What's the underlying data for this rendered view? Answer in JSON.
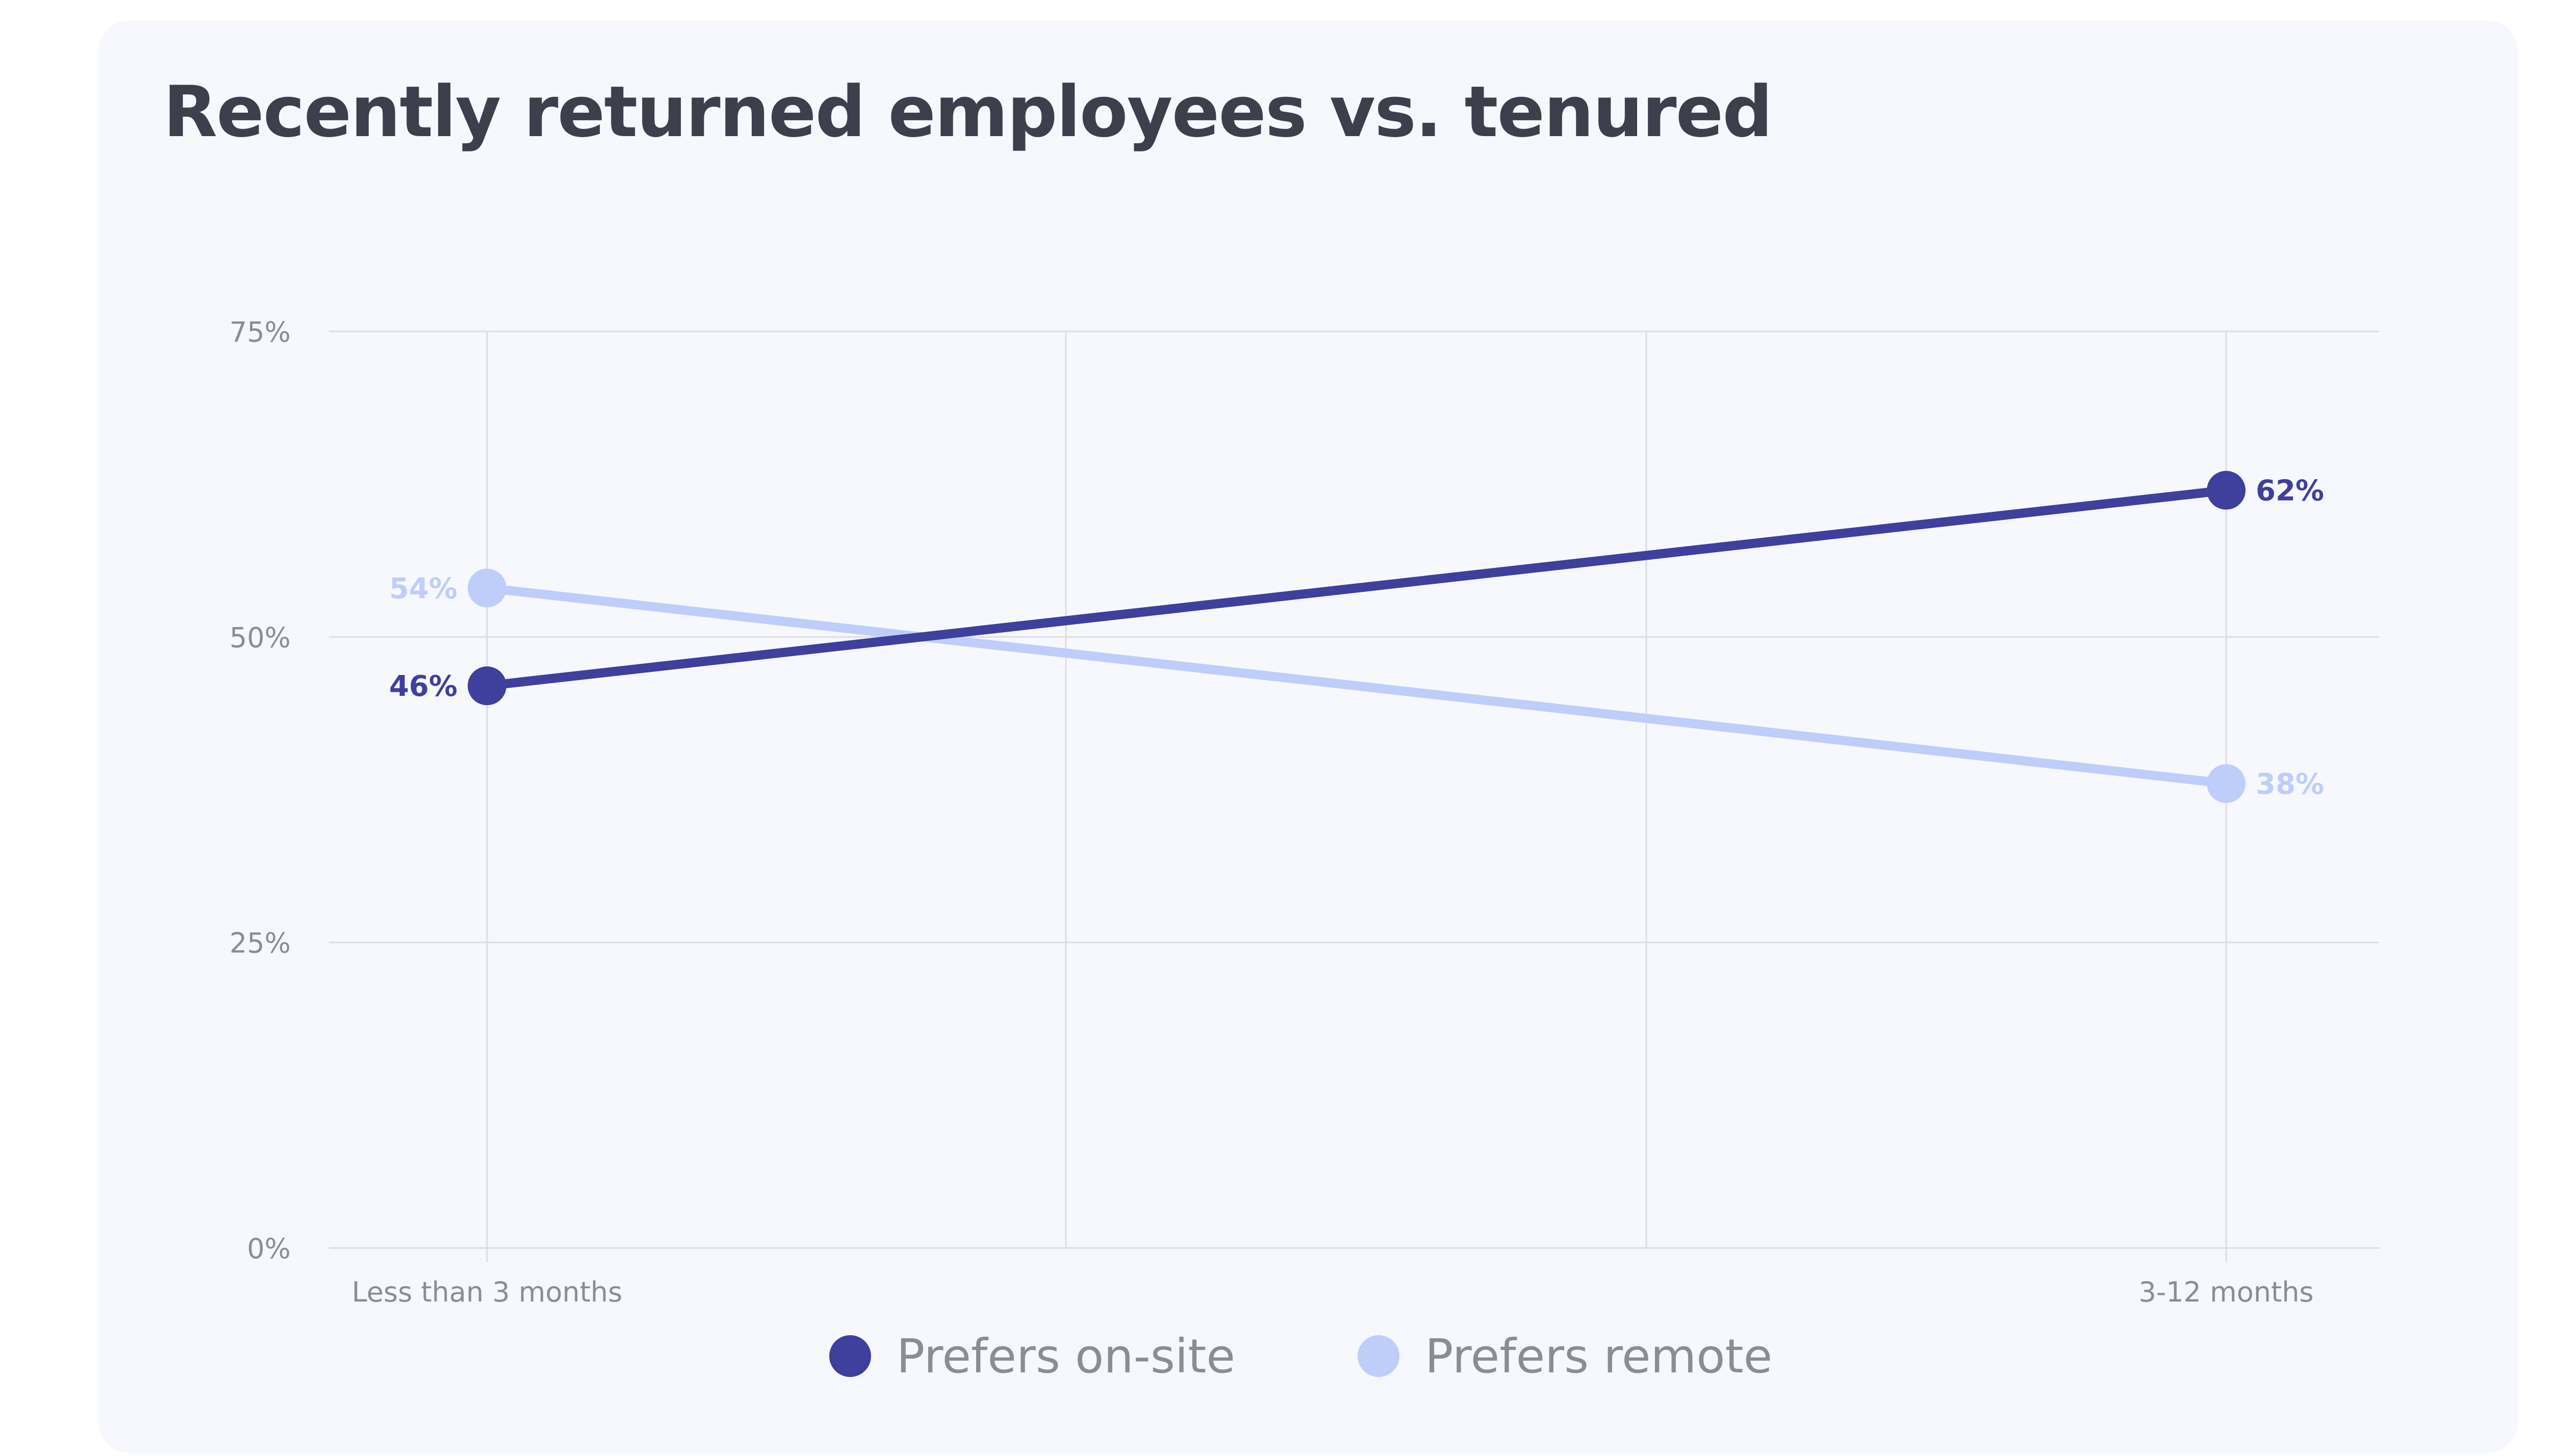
{
  "colors": {
    "background": "#f7f8fd",
    "grid": "#dcdde6",
    "axis_text": "#8c8c96",
    "title": "#3d3f4d"
  },
  "chart_data": {
    "type": "line",
    "title": "Recently returned employees vs. tenured",
    "xlabel": "",
    "ylabel": "",
    "categories": [
      "Less than 3 months",
      "3-12 months"
    ],
    "y_ticks": [
      "0%",
      "25%",
      "50%",
      "75%"
    ],
    "ylim": [
      0,
      75
    ],
    "grid": true,
    "legend_position": "bottom-center",
    "series": [
      {
        "name": "Prefers on-site",
        "color": "#3f3f9e",
        "values": [
          46,
          62
        ],
        "labels": [
          "46%",
          "62%"
        ]
      },
      {
        "name": "Prefers remote",
        "color": "#bfcdfb",
        "values": [
          54,
          38
        ],
        "labels": [
          "54%",
          "38%"
        ]
      }
    ]
  }
}
